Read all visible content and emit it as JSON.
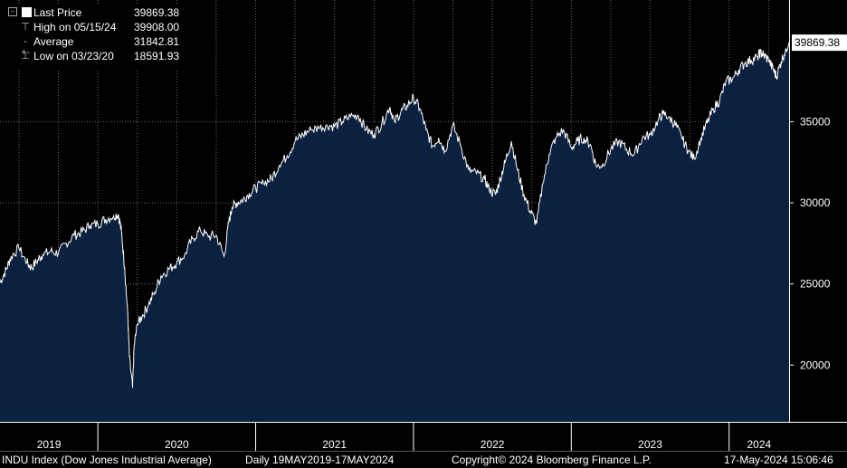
{
  "chart_data": {
    "type": "area",
    "title": "INDU Index (Dow Jones Industrial Average)",
    "frequency": "Daily 19MAY2019-17MAY2024",
    "ylim": [
      16500,
      42500
    ],
    "y_ticks": [
      20000,
      25000,
      30000,
      35000
    ],
    "x_range": [
      2019.38,
      2024.38
    ],
    "x_ticks": [
      "2019",
      "2020",
      "2021",
      "2022",
      "2023",
      "2024"
    ],
    "grid": true,
    "series": [
      {
        "name": "Last Price",
        "color": "#ffffff",
        "fill": "#0b2140",
        "x": [
          2019.38,
          2019.42,
          2019.45,
          2019.5,
          2019.55,
          2019.58,
          2019.62,
          2019.65,
          2019.7,
          2019.75,
          2019.8,
          2019.85,
          2019.9,
          2019.95,
          2020.0,
          2020.05,
          2020.1,
          2020.13,
          2020.15,
          2020.17,
          2020.19,
          2020.2,
          2020.22,
          2020.23,
          2020.25,
          2020.28,
          2020.32,
          2020.36,
          2020.4,
          2020.45,
          2020.5,
          2020.55,
          2020.6,
          2020.65,
          2020.7,
          2020.75,
          2020.8,
          2020.83,
          2020.85,
          2020.88,
          2020.92,
          2020.96,
          2021.0,
          2021.05,
          2021.1,
          2021.15,
          2021.2,
          2021.25,
          2021.3,
          2021.35,
          2021.4,
          2021.45,
          2021.5,
          2021.55,
          2021.6,
          2021.65,
          2021.7,
          2021.75,
          2021.8,
          2021.85,
          2021.88,
          2021.92,
          2021.96,
          2022.0,
          2022.04,
          2022.08,
          2022.12,
          2022.16,
          2022.2,
          2022.25,
          2022.3,
          2022.35,
          2022.4,
          2022.45,
          2022.48,
          2022.52,
          2022.55,
          2022.58,
          2022.62,
          2022.66,
          2022.7,
          2022.74,
          2022.78,
          2022.82,
          2022.86,
          2022.9,
          2022.95,
          2023.0,
          2023.04,
          2023.08,
          2023.12,
          2023.16,
          2023.2,
          2023.25,
          2023.3,
          2023.35,
          2023.4,
          2023.45,
          2023.5,
          2023.55,
          2023.58,
          2023.62,
          2023.66,
          2023.7,
          2023.74,
          2023.78,
          2023.82,
          2023.86,
          2023.9,
          2023.94,
          2023.98,
          2024.02,
          2024.06,
          2024.1,
          2024.14,
          2024.18,
          2024.2,
          2024.22,
          2024.25,
          2024.28,
          2024.3,
          2024.33,
          2024.36,
          2024.38
        ],
        "values": [
          25100,
          25900,
          26700,
          27200,
          26300,
          26000,
          26500,
          26800,
          27000,
          26900,
          27500,
          28000,
          28200,
          28600,
          28700,
          29000,
          29200,
          29300,
          28200,
          26000,
          23000,
          20500,
          18592,
          21200,
          22500,
          23000,
          23700,
          24500,
          25500,
          25900,
          26300,
          26800,
          27800,
          28300,
          27900,
          28000,
          26700,
          28800,
          29700,
          30000,
          30200,
          30600,
          30900,
          31200,
          31500,
          32300,
          32900,
          33800,
          34200,
          34500,
          34600,
          34800,
          34700,
          35000,
          35300,
          35400,
          34500,
          34200,
          34900,
          35900,
          35000,
          35600,
          36000,
          36500,
          35800,
          34500,
          33500,
          34000,
          33200,
          34800,
          33500,
          32000,
          31800,
          31500,
          30800,
          30500,
          31500,
          32500,
          33800,
          32000,
          30500,
          29500,
          28700,
          31200,
          33000,
          34000,
          34500,
          33400,
          33800,
          34000,
          33600,
          32200,
          32400,
          33300,
          33800,
          33300,
          33000,
          34000,
          34200,
          35100,
          35500,
          35300,
          34800,
          34000,
          33200,
          32700,
          34000,
          34900,
          35800,
          36300,
          37500,
          37600,
          38200,
          38600,
          38800,
          39000,
          39300,
          39100,
          38800,
          38200,
          37800,
          38700,
          39500,
          39869.38
        ]
      }
    ],
    "stats": [
      {
        "label": "Last Price",
        "value": "39869.38"
      },
      {
        "label": "High on 05/15/24",
        "value": "39908.00"
      },
      {
        "label": "Average",
        "value": "31842.81"
      },
      {
        "label": "Low on 03/23/20",
        "value": "18591.93"
      }
    ],
    "last_value_tag": "39869.38"
  },
  "footer": {
    "ticker": "INDU Index (Dow Jones Industrial Average)",
    "period": "Daily 19MAY2019-17MAY2024",
    "copyright": "Copyright© 2024 Bloomberg Finance L.P.",
    "timestamp": "17-May-2024 15:06:46"
  },
  "legend_icons": [
    "square-icon",
    "high-marker-icon",
    "average-marker-icon",
    "low-marker-icon"
  ],
  "colors": {
    "background": "#000000",
    "area_fill": "#0b2140",
    "line": "#ffffff",
    "grid": "#6a6a6a"
  }
}
